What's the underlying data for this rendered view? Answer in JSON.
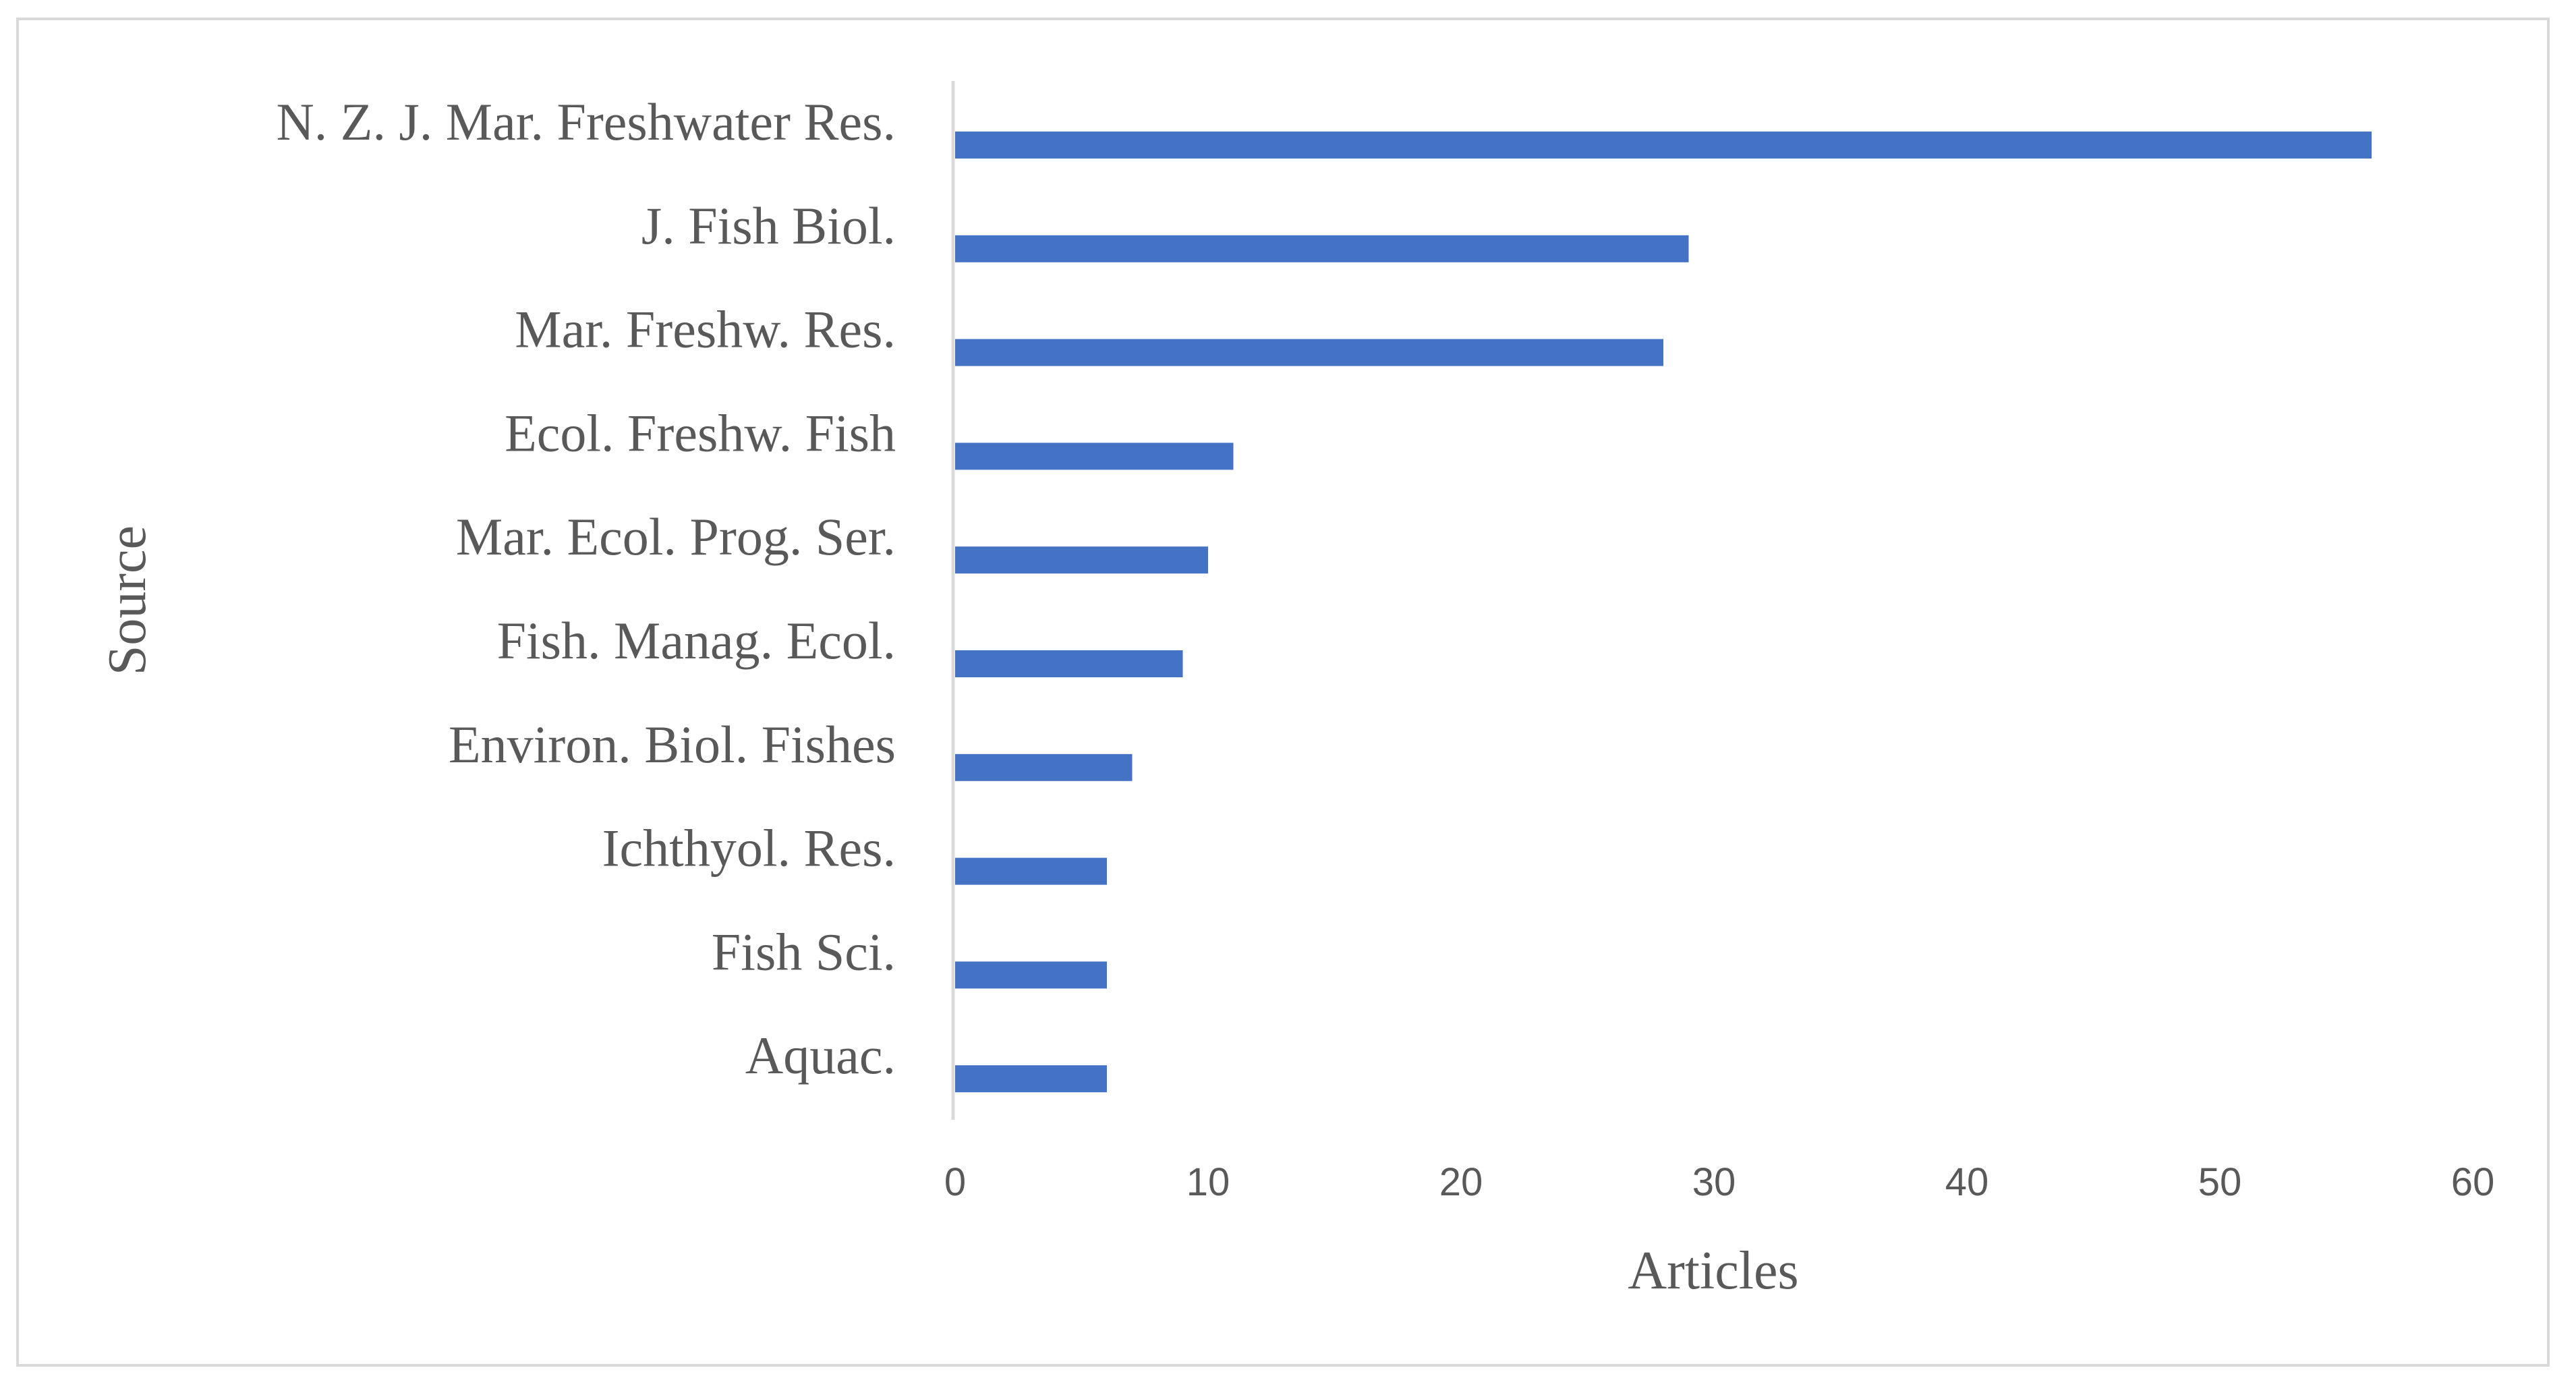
{
  "chart_data": {
    "type": "bar",
    "orientation": "horizontal",
    "categories": [
      "N. Z. J. Mar. Freshwater Res.",
      "J. Fish Biol.",
      "Mar. Freshw. Res.",
      "Ecol. Freshw. Fish",
      "Mar. Ecol. Prog. Ser.",
      "Fish. Manag. Ecol.",
      "Environ. Biol. Fishes",
      "Ichthyol. Res.",
      "Fish Sci.",
      "Aquac."
    ],
    "values": [
      56,
      29,
      28,
      11,
      10,
      9,
      7,
      6,
      6,
      6
    ],
    "xlabel": "Articles",
    "ylabel": "Source",
    "xlim": [
      0,
      60
    ],
    "xticks": [
      0,
      10,
      20,
      30,
      40,
      50,
      60
    ],
    "grid": false,
    "legend": "none",
    "bar_color": "#4472c4",
    "axis_color": "#d9d9d9",
    "text_color": "#595959"
  }
}
